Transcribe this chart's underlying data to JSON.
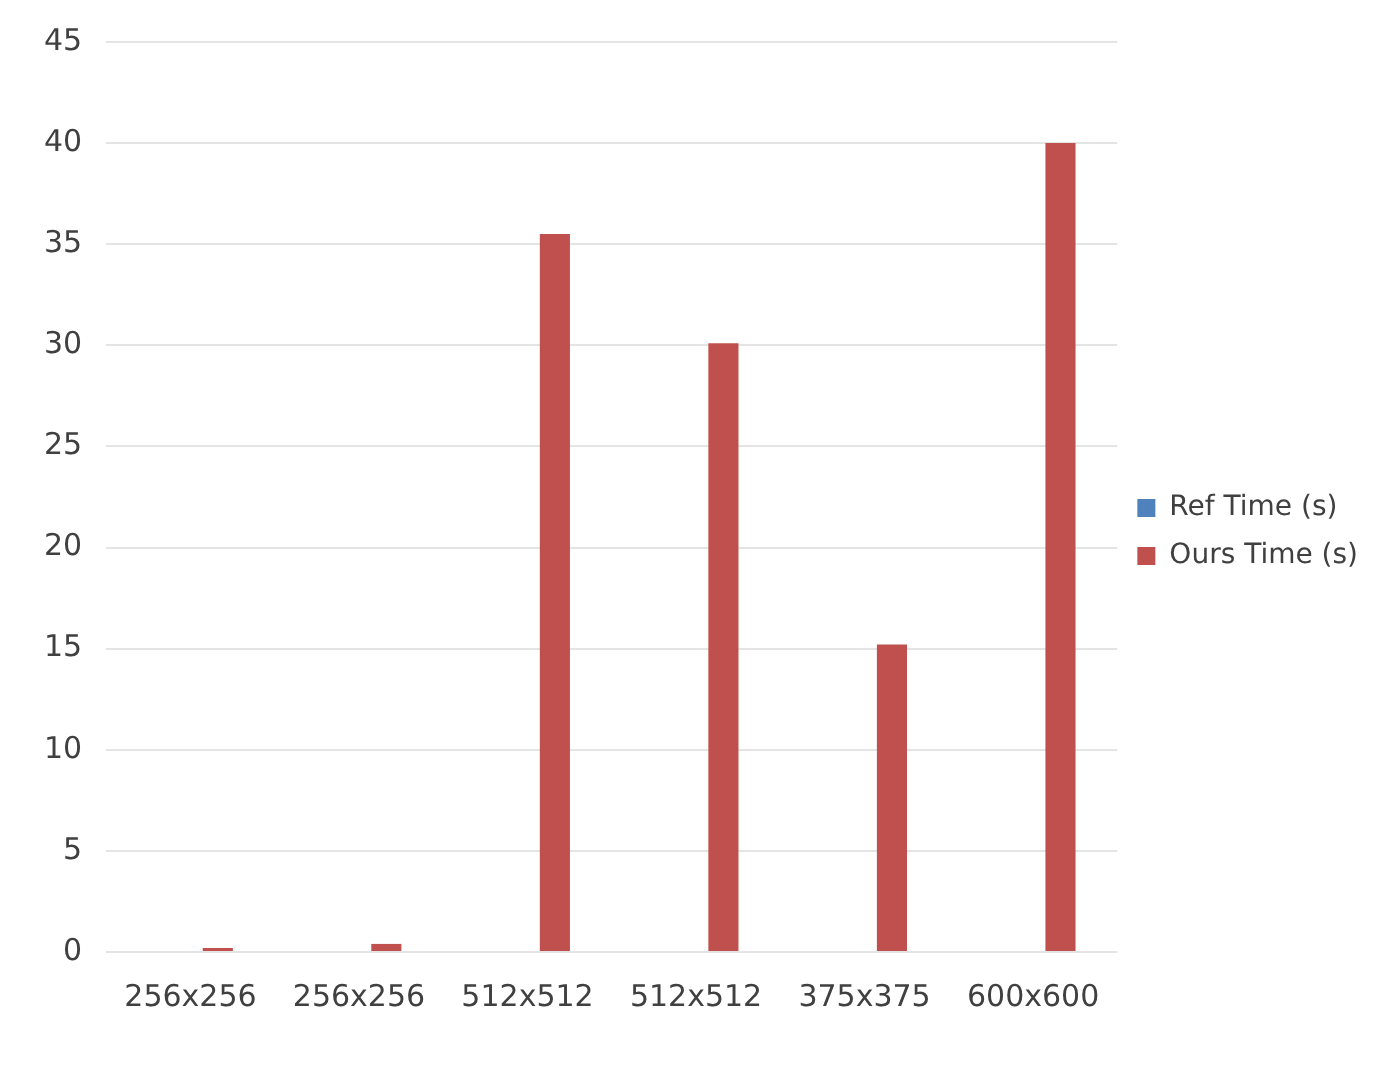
{
  "chart_data": {
    "type": "bar",
    "categories": [
      "256x256",
      "256x256",
      "512x512",
      "512x512",
      "375x375",
      "600x600"
    ],
    "series": [
      {
        "name": "Ref Time (s)",
        "color": "#4f81bd",
        "values": [
          0,
          0,
          0,
          0,
          0,
          0
        ]
      },
      {
        "name": "Ours Time (s)",
        "color": "#c0504d",
        "values": [
          0.2,
          0.4,
          35.5,
          30.1,
          15.2,
          40
        ]
      }
    ],
    "ylim": [
      0,
      45
    ],
    "yticks": [
      0,
      5,
      10,
      15,
      20,
      25,
      30,
      35,
      40,
      45
    ],
    "grid": "y",
    "legend": "right"
  }
}
